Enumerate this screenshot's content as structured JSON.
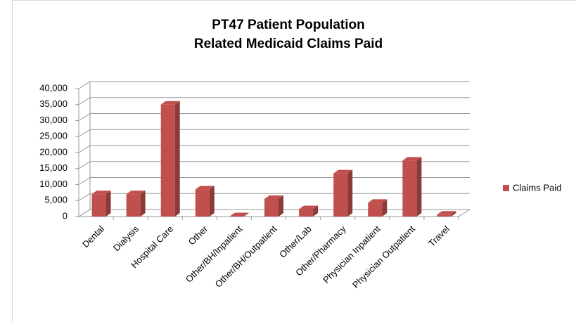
{
  "chart_data": {
    "type": "bar3d",
    "title": "PT47 Patient Population",
    "subtitle": "Related Medicaid Claims Paid",
    "categories": [
      "Dental",
      "Dialysis",
      "Hospital Care",
      "Other",
      "Other/BH/Inpatient",
      "Other/BH/Outpatient",
      "Other/Lab",
      "Other/Pharmacy",
      "Physician Inpatient",
      "Physician Outpatient",
      "Travel"
    ],
    "series": [
      {
        "name": "Claims Paid",
        "color": "#c0504d",
        "values": [
          7000,
          7000,
          35000,
          8500,
          100,
          5500,
          2300,
          13500,
          4300,
          17500,
          600
        ]
      }
    ],
    "ylim": [
      0,
      40000
    ],
    "yticks": [
      0,
      {
        "value": 5000,
        "label": "5,000"
      },
      {
        "value": 10000,
        "label": "10,000"
      },
      {
        "value": 15000,
        "label": "15,000"
      },
      {
        "value": 20000,
        "label": "20,000"
      },
      {
        "value": 25000,
        "label": "25,000"
      },
      {
        "value": 30000,
        "label": "30,000"
      },
      {
        "value": 35000,
        "label": "35,000"
      },
      {
        "value": 40000,
        "label": "40,000"
      }
    ],
    "grid": true,
    "legend": "right"
  }
}
